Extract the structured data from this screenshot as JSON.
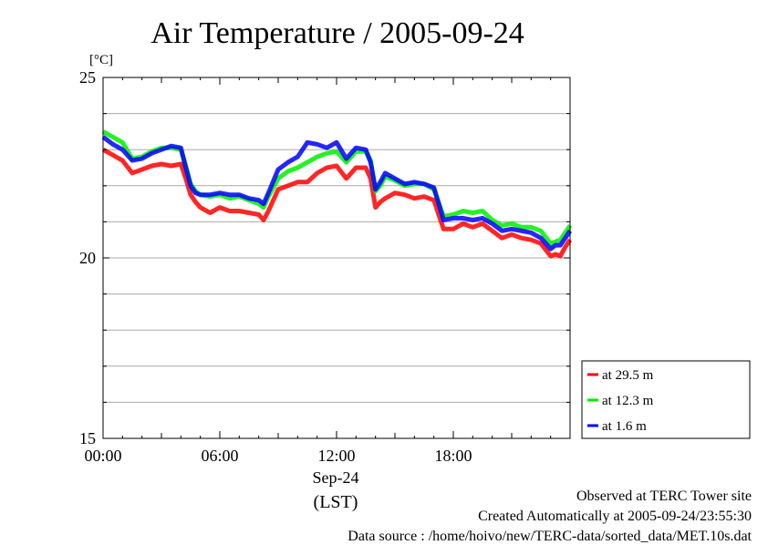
{
  "chart_data": {
    "type": "line",
    "title": "Air Temperature / 2005-09-24",
    "yunit": "[°C]",
    "xlabel": "(LST)",
    "date_label": "Sep-24",
    "ylim": [
      15,
      25
    ],
    "xlim": [
      0,
      24
    ],
    "yticks": [
      15,
      20,
      25
    ],
    "yticks_labels": [
      "15",
      "20",
      "25"
    ],
    "xticks": [
      0,
      6,
      12,
      18
    ],
    "xtick_labels": [
      "00:00",
      "06:00",
      "12:00",
      "18:00"
    ],
    "grid": true,
    "legend_position": "bottom-right, outside plot",
    "series": [
      {
        "name": "at 29.5 m",
        "color": "#ff0000",
        "x": [
          0,
          0.5,
          1,
          1.5,
          2,
          2.5,
          3,
          3.5,
          4,
          4.25,
          4.5,
          4.75,
          5,
          5.5,
          6,
          6.5,
          7,
          7.5,
          8,
          8.25,
          8.5,
          9,
          9.5,
          10,
          10.5,
          11,
          11.5,
          12,
          12.5,
          13,
          13.5,
          13.75,
          14,
          14.25,
          14.5,
          15,
          15.5,
          16,
          16.5,
          17,
          17.5,
          18,
          18.5,
          19,
          19.5,
          20,
          20.5,
          21,
          21.5,
          22,
          22.5,
          23,
          23.25,
          23.5,
          23.75,
          24
        ],
        "y": [
          23.0,
          22.85,
          22.7,
          22.35,
          22.45,
          22.55,
          22.6,
          22.55,
          22.6,
          22.2,
          21.75,
          21.55,
          21.4,
          21.25,
          21.4,
          21.3,
          21.3,
          21.25,
          21.2,
          21.05,
          21.3,
          21.9,
          22.0,
          22.1,
          22.1,
          22.35,
          22.5,
          22.55,
          22.2,
          22.5,
          22.5,
          22.2,
          21.4,
          21.55,
          21.65,
          21.8,
          21.75,
          21.65,
          21.7,
          21.6,
          20.8,
          20.8,
          20.95,
          20.85,
          20.95,
          20.75,
          20.55,
          20.65,
          20.55,
          20.5,
          20.4,
          20.05,
          20.1,
          20.05,
          20.3,
          20.5
        ]
      },
      {
        "name": "at 12.3 m",
        "color": "#00ee00",
        "x": [
          0,
          0.5,
          1,
          1.5,
          2,
          2.5,
          3,
          3.5,
          4,
          4.25,
          4.5,
          4.75,
          5,
          5.5,
          6,
          6.5,
          7,
          7.5,
          8,
          8.25,
          8.5,
          9,
          9.5,
          10,
          10.5,
          11,
          11.5,
          12,
          12.5,
          13,
          13.5,
          13.75,
          14,
          14.25,
          14.5,
          15,
          15.5,
          16,
          16.5,
          17,
          17.5,
          18,
          18.5,
          19,
          19.5,
          20,
          20.5,
          21,
          21.5,
          22,
          22.5,
          23,
          23.25,
          23.5,
          23.75,
          24
        ],
        "y": [
          23.5,
          23.35,
          23.2,
          22.75,
          22.8,
          22.95,
          23.05,
          23.05,
          23.0,
          22.55,
          22.05,
          21.85,
          21.75,
          21.7,
          21.75,
          21.65,
          21.7,
          21.6,
          21.5,
          21.4,
          21.7,
          22.2,
          22.4,
          22.5,
          22.65,
          22.8,
          22.9,
          22.95,
          22.65,
          22.95,
          22.95,
          22.7,
          21.85,
          22.0,
          22.25,
          22.15,
          22.0,
          22.05,
          22.05,
          21.9,
          21.15,
          21.2,
          21.3,
          21.25,
          21.3,
          21.05,
          20.9,
          20.95,
          20.85,
          20.85,
          20.75,
          20.4,
          20.45,
          20.5,
          20.7,
          20.9
        ]
      },
      {
        "name": "at 1.6 m",
        "color": "#0000ff",
        "x": [
          0,
          0.5,
          1,
          1.5,
          2,
          2.5,
          3,
          3.5,
          4,
          4.25,
          4.5,
          4.75,
          5,
          5.5,
          6,
          6.5,
          7,
          7.5,
          8,
          8.25,
          8.5,
          9,
          9.5,
          10,
          10.5,
          11,
          11.5,
          12,
          12.5,
          13,
          13.5,
          13.75,
          14,
          14.25,
          14.5,
          15,
          15.5,
          16,
          16.5,
          17,
          17.5,
          18,
          18.5,
          19,
          19.5,
          20,
          20.5,
          21,
          21.5,
          22,
          22.5,
          23,
          23.25,
          23.5,
          23.75,
          24
        ],
        "y": [
          23.35,
          23.15,
          23.0,
          22.7,
          22.75,
          22.9,
          23.0,
          23.1,
          23.05,
          22.5,
          22.0,
          21.8,
          21.75,
          21.75,
          21.8,
          21.75,
          21.75,
          21.65,
          21.6,
          21.5,
          21.8,
          22.45,
          22.65,
          22.8,
          23.2,
          23.15,
          23.05,
          23.2,
          22.75,
          23.05,
          23.0,
          22.65,
          21.9,
          22.1,
          22.35,
          22.2,
          22.05,
          22.1,
          22.05,
          21.95,
          21.05,
          21.1,
          21.1,
          21.05,
          21.1,
          20.95,
          20.75,
          20.8,
          20.75,
          20.7,
          20.55,
          20.25,
          20.35,
          20.35,
          20.55,
          20.75
        ]
      }
    ]
  },
  "footer": {
    "line1": "Observed at TERC Tower site",
    "line2": "Created Automatically at 2005-09-24/23:55:30",
    "line3": "Data source : /home/hoivo/new/TERC-data/sorted_data/MET.10s.dat"
  }
}
